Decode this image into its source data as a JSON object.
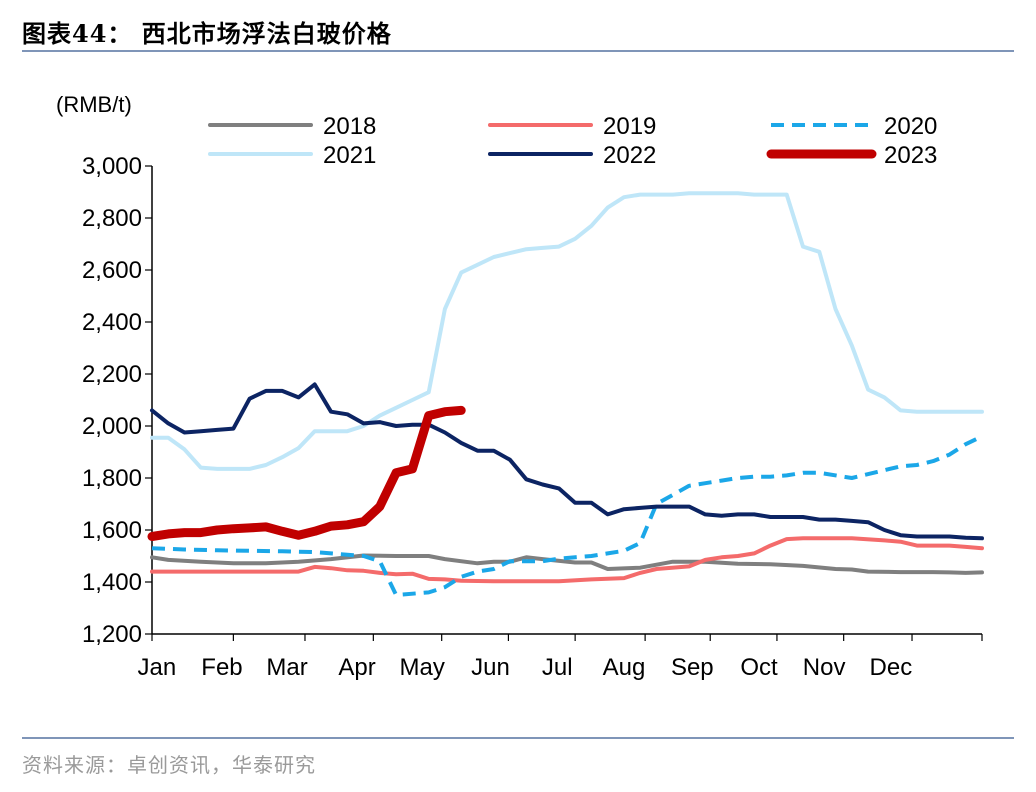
{
  "header": {
    "title": "图表44：  西北市场浮法白玻价格"
  },
  "footer": {
    "source": "资料来源：卓创资讯，华泰研究"
  },
  "chart_data": {
    "type": "line",
    "unit_label": "(RMB/t)",
    "ylim": [
      1200,
      3000
    ],
    "yticks": [
      1200,
      1400,
      1600,
      1800,
      2000,
      2200,
      2400,
      2600,
      2800,
      3000
    ],
    "ytick_labels": [
      "1,200",
      "1,400",
      "1,600",
      "1,800",
      "2,000",
      "2,200",
      "2,400",
      "2,600",
      "2,800",
      "3,000"
    ],
    "xlim": [
      1,
      52
    ],
    "x_unit": "week of year",
    "categories": [
      "Jan",
      "Feb",
      "Mar",
      "Apr",
      "May",
      "Jun",
      "Jul",
      "Aug",
      "Sep",
      "Oct",
      "Nov",
      "Dec"
    ],
    "category_week": [
      1.3,
      5.3,
      9.3,
      13.6,
      17.6,
      21.8,
      25.9,
      30.0,
      34.2,
      38.3,
      42.3,
      46.4
    ],
    "grid": false,
    "legend_position": "top",
    "series": [
      {
        "name": "2018",
        "color": "#7f7f7f",
        "dash": "solid",
        "width": 4,
        "x": [
          1,
          2,
          4,
          6,
          8,
          10,
          12,
          14,
          16,
          18,
          19,
          21,
          22,
          23,
          24,
          25,
          27,
          28,
          29,
          31,
          33,
          35,
          37,
          39,
          41,
          43,
          44,
          45,
          47,
          49,
          50,
          51,
          52
        ],
        "values": [
          1495,
          1485,
          1478,
          1472,
          1472,
          1478,
          1488,
          1502,
          1500,
          1500,
          1488,
          1472,
          1478,
          1478,
          1495,
          1488,
          1475,
          1475,
          1450,
          1455,
          1478,
          1478,
          1470,
          1468,
          1462,
          1450,
          1448,
          1440,
          1438,
          1438,
          1437,
          1435,
          1437
        ]
      },
      {
        "name": "2019",
        "color": "#f46b6b",
        "dash": "solid",
        "width": 4,
        "x": [
          1,
          3,
          5,
          7,
          9,
          10,
          11,
          12,
          13,
          14,
          15,
          16,
          17,
          18,
          19,
          20,
          22,
          24,
          26,
          28,
          30,
          31,
          32,
          34,
          35,
          36,
          37,
          38,
          39,
          40,
          41,
          42,
          44,
          46,
          47,
          48,
          49,
          50,
          51,
          52
        ],
        "values": [
          1440,
          1440,
          1440,
          1440,
          1440,
          1440,
          1458,
          1453,
          1445,
          1443,
          1435,
          1430,
          1432,
          1412,
          1410,
          1405,
          1403,
          1403,
          1403,
          1410,
          1415,
          1435,
          1450,
          1460,
          1485,
          1495,
          1500,
          1510,
          1540,
          1565,
          1568,
          1568,
          1568,
          1560,
          1555,
          1540,
          1540,
          1540,
          1535,
          1530
        ]
      },
      {
        "name": "2020",
        "color": "#1ba7e8",
        "dash": "dashed",
        "width": 4,
        "x": [
          1,
          3,
          5,
          7,
          9,
          11,
          13,
          14,
          15,
          16,
          18,
          19,
          20,
          21,
          22,
          23,
          24,
          25,
          26,
          28,
          29,
          30,
          31,
          32,
          34,
          35,
          36,
          37,
          38,
          39,
          40,
          41,
          42,
          44,
          46,
          47,
          48,
          49,
          50,
          51,
          52
        ],
        "values": [
          1530,
          1525,
          1522,
          1520,
          1518,
          1515,
          1505,
          1500,
          1480,
          1350,
          1360,
          1380,
          1420,
          1440,
          1450,
          1480,
          1480,
          1480,
          1490,
          1500,
          1510,
          1520,
          1550,
          1700,
          1770,
          1780,
          1790,
          1800,
          1805,
          1805,
          1810,
          1820,
          1820,
          1800,
          1830,
          1845,
          1850,
          1865,
          1890,
          1930,
          1960
        ]
      },
      {
        "name": "2021",
        "color": "#bfe6f8",
        "dash": "solid",
        "width": 4,
        "x": [
          1,
          2,
          3,
          4,
          5,
          6,
          7,
          8,
          9,
          10,
          11,
          12,
          13,
          14,
          15,
          16,
          17,
          18,
          19,
          20,
          21,
          22,
          23,
          24,
          25,
          26,
          27,
          28,
          29,
          30,
          31,
          32,
          33,
          34,
          35,
          36,
          37,
          38,
          39,
          40,
          41,
          42,
          43,
          44,
          45,
          46,
          47,
          48,
          49,
          50,
          51,
          52
        ],
        "values": [
          1955,
          1955,
          1910,
          1840,
          1835,
          1835,
          1835,
          1850,
          1880,
          1915,
          1980,
          1980,
          1980,
          2000,
          2040,
          2070,
          2100,
          2130,
          2450,
          2590,
          2620,
          2650,
          2665,
          2680,
          2685,
          2690,
          2720,
          2770,
          2840,
          2880,
          2890,
          2890,
          2890,
          2895,
          2895,
          2895,
          2895,
          2890,
          2890,
          2890,
          2690,
          2670,
          2450,
          2310,
          2140,
          2110,
          2060,
          2055,
          2055,
          2055,
          2055,
          2055
        ]
      },
      {
        "name": "2022",
        "color": "#0c2463",
        "dash": "solid",
        "width": 4,
        "x": [
          1,
          2,
          3,
          4,
          5,
          6,
          7,
          8,
          9,
          10,
          11,
          12,
          13,
          14,
          15,
          16,
          17,
          18,
          19,
          20,
          21,
          22,
          23,
          24,
          25,
          26,
          27,
          28,
          29,
          30,
          31,
          32,
          33,
          34,
          35,
          36,
          37,
          38,
          39,
          40,
          41,
          42,
          43,
          44,
          45,
          46,
          47,
          48,
          49,
          50,
          51,
          52
        ],
        "values": [
          2060,
          2010,
          1975,
          1980,
          1985,
          1990,
          2105,
          2135,
          2135,
          2110,
          2160,
          2055,
          2045,
          2010,
          2015,
          2000,
          2005,
          2005,
          1975,
          1935,
          1905,
          1905,
          1870,
          1795,
          1775,
          1760,
          1705,
          1705,
          1660,
          1680,
          1685,
          1690,
          1690,
          1690,
          1660,
          1655,
          1660,
          1660,
          1650,
          1650,
          1650,
          1640,
          1640,
          1635,
          1630,
          1600,
          1580,
          1575,
          1575,
          1575,
          1570,
          1568
        ]
      },
      {
        "name": "2023",
        "color": "#c00000",
        "dash": "solid",
        "width": 9,
        "x": [
          1,
          2,
          3,
          4,
          5,
          6,
          7,
          8,
          9,
          10,
          11,
          12,
          13,
          14,
          15,
          16,
          17,
          18,
          19,
          20
        ],
        "values": [
          1575,
          1585,
          1590,
          1590,
          1600,
          1605,
          1608,
          1612,
          1595,
          1580,
          1595,
          1615,
          1620,
          1632,
          1690,
          1820,
          1835,
          2040,
          2055,
          2060
        ]
      }
    ]
  }
}
